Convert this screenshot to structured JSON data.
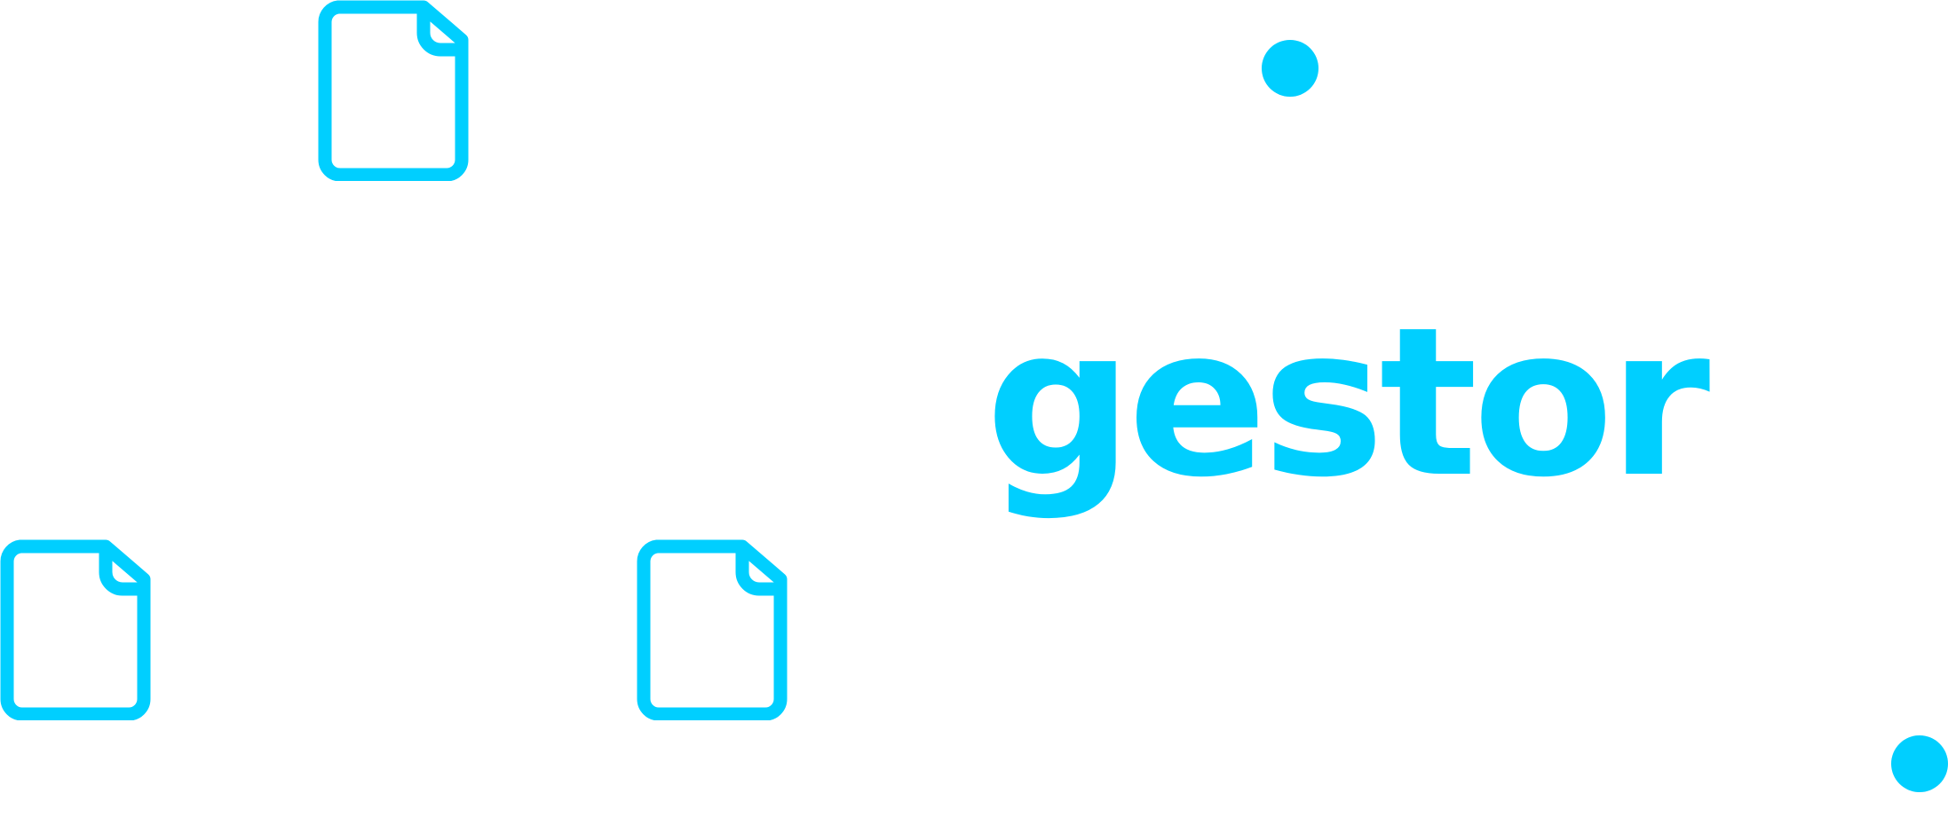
{
  "logo": {
    "wordmark": "gestor",
    "accent_color": "#00CFFF",
    "icons": [
      "document-icon",
      "document-icon",
      "document-icon"
    ],
    "dots": [
      "dot",
      "dot"
    ]
  }
}
